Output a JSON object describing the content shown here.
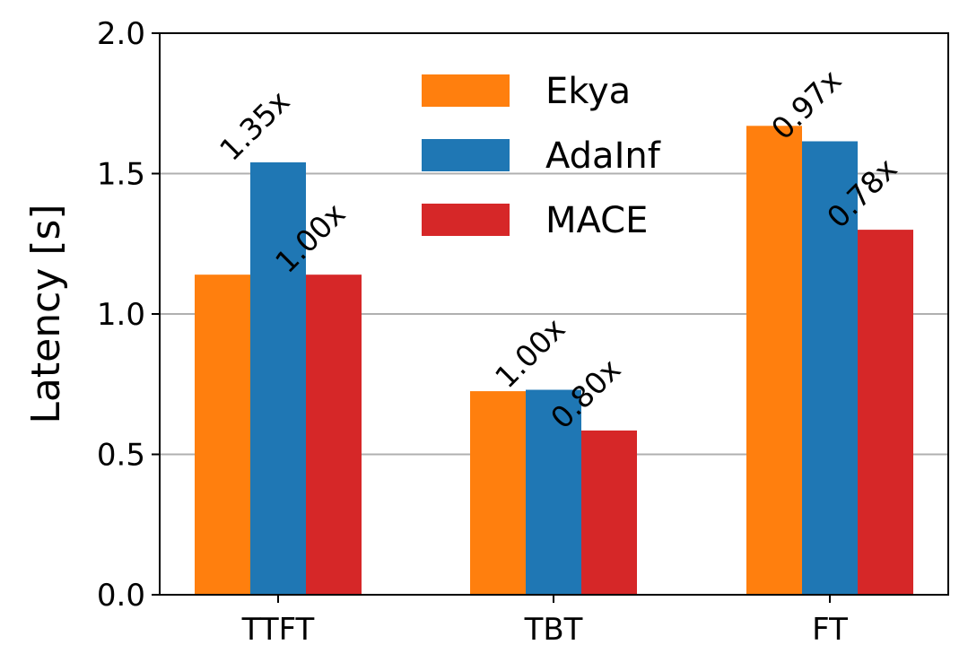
{
  "chart_data": {
    "type": "bar",
    "title": "",
    "xlabel": "",
    "ylabel": "Latency [s]",
    "ylim": [
      0,
      2.0
    ],
    "yticks": [
      "0.0",
      "0.5",
      "1.0",
      "1.5",
      "2.0"
    ],
    "ytick_values": [
      0,
      0.5,
      1.0,
      1.5,
      2.0
    ],
    "grid": "horizontal",
    "legend_position": "top-center",
    "categories": [
      "TTFT",
      "TBT",
      "FT"
    ],
    "series": [
      {
        "name": "Ekya",
        "color": "#ff7f0e",
        "values": [
          1.14,
          0.725,
          1.67
        ],
        "labels": [
          "",
          "",
          ""
        ]
      },
      {
        "name": "AdaInf",
        "color": "#1f77b4",
        "values": [
          1.54,
          0.73,
          1.615
        ],
        "labels": [
          "1.35x",
          "1.00x",
          "0.97x"
        ]
      },
      {
        "name": "MACE",
        "color": "#d62728",
        "values": [
          1.14,
          0.585,
          1.3
        ],
        "labels": [
          "1.00x",
          "0.80x",
          "0.78x"
        ]
      }
    ]
  }
}
